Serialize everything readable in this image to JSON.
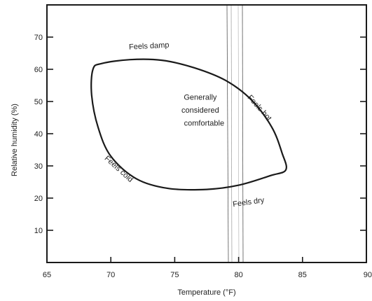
{
  "chart_data": {
    "type": "scatter",
    "title": "",
    "xlabel": "Temperature (°F)",
    "ylabel": "Relative humidity (%)",
    "xlim": [
      65,
      90
    ],
    "ylim": [
      0,
      80
    ],
    "xticks": [
      65,
      70,
      75,
      80,
      85,
      90
    ],
    "yticks": [
      10,
      20,
      30,
      40,
      50,
      60,
      70
    ],
    "grid": false,
    "comfort_zone": {
      "shape": "closed-curve",
      "points": [
        {
          "x": 68.6,
          "y": 60.0
        },
        {
          "x": 69.3,
          "y": 61.8
        },
        {
          "x": 71.5,
          "y": 63.0
        },
        {
          "x": 74.0,
          "y": 62.8
        },
        {
          "x": 76.5,
          "y": 60.5
        },
        {
          "x": 79.0,
          "y": 56.5
        },
        {
          "x": 81.0,
          "y": 50.5
        },
        {
          "x": 82.6,
          "y": 42.0
        },
        {
          "x": 83.4,
          "y": 34.0
        },
        {
          "x": 83.7,
          "y": 28.8
        },
        {
          "x": 82.5,
          "y": 27.0
        },
        {
          "x": 80.0,
          "y": 24.0
        },
        {
          "x": 77.5,
          "y": 22.7
        },
        {
          "x": 74.5,
          "y": 23.0
        },
        {
          "x": 72.0,
          "y": 26.0
        },
        {
          "x": 70.0,
          "y": 33.0
        },
        {
          "x": 69.0,
          "y": 42.0
        },
        {
          "x": 68.5,
          "y": 52.0
        }
      ]
    },
    "annotations": [
      {
        "text": "Feels damp",
        "x": 73.0,
        "y": 66.5,
        "rotate": -3
      },
      {
        "text": "Feels hot",
        "x": 81.5,
        "y": 47.5,
        "rotate": 48
      },
      {
        "text": "Feels cold",
        "x": 70.5,
        "y": 28.5,
        "rotate": 42
      },
      {
        "text": "Feels dry",
        "x": 80.8,
        "y": 18.0,
        "rotate": -8
      },
      {
        "text": "Generally",
        "x": 77.0,
        "y": 50.5,
        "rotate": 0
      },
      {
        "text": "considered",
        "x": 77.0,
        "y": 46.5,
        "rotate": 0
      },
      {
        "text": "comfortable",
        "x": 77.3,
        "y": 42.5,
        "rotate": 0
      }
    ]
  }
}
